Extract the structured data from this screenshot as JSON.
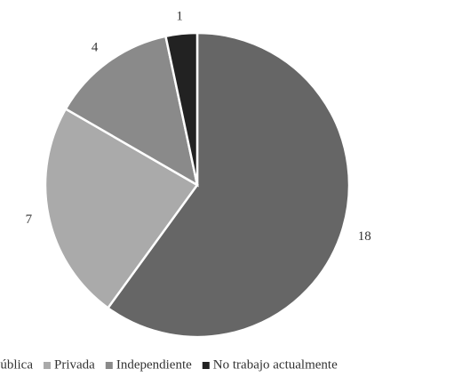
{
  "chart_data": {
    "type": "pie",
    "categories": [
      "Pública",
      "Privada",
      "Independiente",
      "No trabajo actualmente"
    ],
    "values": [
      18,
      7,
      4,
      1
    ],
    "colors": [
      "#666666",
      "#aaaaaa",
      "#8a8a8a",
      "#222222"
    ]
  }
}
